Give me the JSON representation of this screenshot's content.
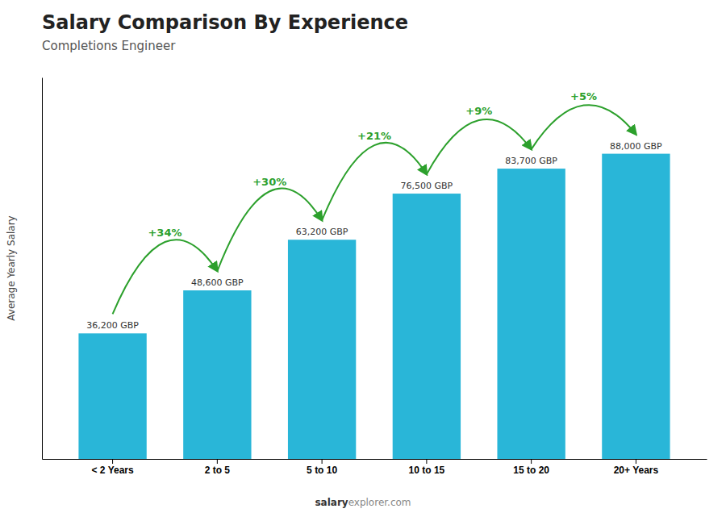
{
  "chart_data": {
    "type": "bar",
    "title": "Salary Comparison By Experience",
    "subtitle": "Completions Engineer",
    "categories": [
      "< 2 Years",
      "2 to 5",
      "5 to 10",
      "10 to 15",
      "15 to 20",
      "20+ Years"
    ],
    "values": [
      36200,
      48600,
      63200,
      76500,
      83700,
      88000
    ],
    "value_labels": [
      "36,200 GBP",
      "48,600 GBP",
      "63,200 GBP",
      "76,500 GBP",
      "83,700 GBP",
      "88,000 GBP"
    ],
    "data_labels": true,
    "color": "#29b6d8",
    "ylabel": "Average Yearly Salary",
    "ylim": [
      0,
      110000
    ],
    "yticks": [],
    "tick_labels": "x",
    "grid": false,
    "annotations": [
      "+34%",
      "+30%",
      "+21%",
      "+9%",
      "+5%"
    ],
    "footer": [
      "salary",
      "explorer.com"
    ]
  }
}
